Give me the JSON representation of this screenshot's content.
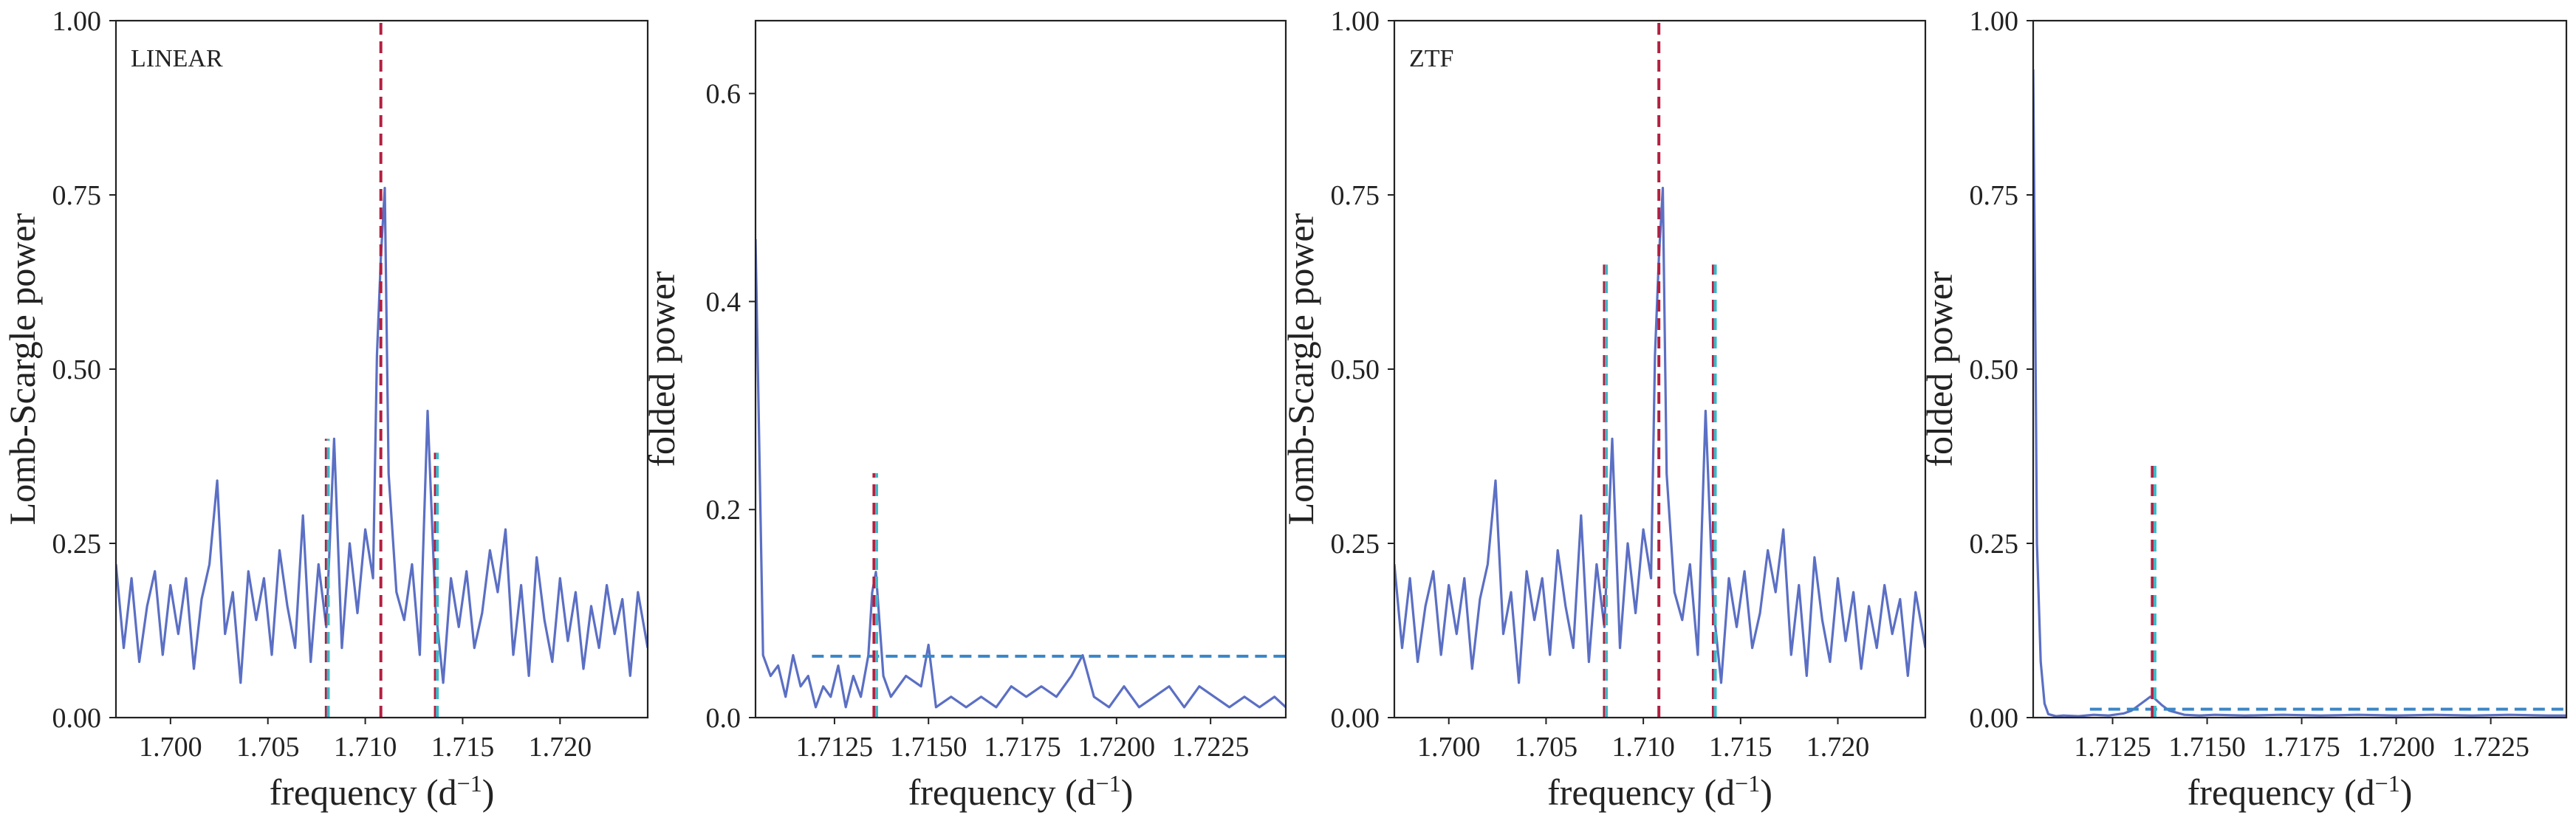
{
  "chart_data": [
    {
      "type": "line",
      "panel_label": "LINEAR",
      "xlabel": "frequency (d",
      "xlabel_sup": "−1",
      "xlabel_end": ")",
      "ylabel": "Lomb-Scargle power",
      "xlim": [
        1.6972,
        1.7245
      ],
      "ylim": [
        0,
        1
      ],
      "xticks": [
        1.7,
        1.705,
        1.71,
        1.715,
        1.72
      ],
      "xtick_labels": [
        "1.700",
        "1.705",
        "1.710",
        "1.715",
        "1.720"
      ],
      "yticks": [
        0,
        0.25,
        0.5,
        0.75,
        1.0
      ],
      "ytick_labels": [
        "0.00",
        "0.25",
        "0.50",
        "0.75",
        "1.00"
      ],
      "series": [
        {
          "color": "#5b6fc4",
          "x": [
            1.6972,
            1.6976,
            1.698,
            1.6984,
            1.6988,
            1.6992,
            1.6996,
            1.7,
            1.7004,
            1.7008,
            1.7012,
            1.7016,
            1.702,
            1.7024,
            1.7028,
            1.7032,
            1.7036,
            1.704,
            1.7044,
            1.7048,
            1.7052,
            1.7056,
            1.706,
            1.7064,
            1.7068,
            1.7072,
            1.7076,
            1.708,
            1.7084,
            1.7088,
            1.7092,
            1.7096,
            1.71,
            1.7104,
            1.7106,
            1.7108,
            1.711,
            1.7112,
            1.7116,
            1.712,
            1.7124,
            1.7128,
            1.7132,
            1.7136,
            1.714,
            1.7144,
            1.7148,
            1.7152,
            1.7156,
            1.716,
            1.7164,
            1.7168,
            1.7172,
            1.7176,
            1.718,
            1.7184,
            1.7188,
            1.7192,
            1.7196,
            1.72,
            1.7204,
            1.7208,
            1.7212,
            1.7216,
            1.722,
            1.7224,
            1.7228,
            1.7232,
            1.7236,
            1.724,
            1.7245
          ],
          "y": [
            0.22,
            0.1,
            0.2,
            0.08,
            0.16,
            0.21,
            0.09,
            0.19,
            0.12,
            0.2,
            0.07,
            0.17,
            0.22,
            0.34,
            0.12,
            0.18,
            0.05,
            0.21,
            0.14,
            0.2,
            0.09,
            0.24,
            0.16,
            0.1,
            0.29,
            0.08,
            0.22,
            0.13,
            0.4,
            0.1,
            0.25,
            0.15,
            0.27,
            0.2,
            0.52,
            0.66,
            0.76,
            0.35,
            0.18,
            0.14,
            0.22,
            0.09,
            0.44,
            0.16,
            0.05,
            0.2,
            0.13,
            0.21,
            0.1,
            0.15,
            0.24,
            0.18,
            0.27,
            0.09,
            0.19,
            0.06,
            0.23,
            0.14,
            0.08,
            0.2,
            0.11,
            0.18,
            0.07,
            0.16,
            0.1,
            0.19,
            0.12,
            0.17,
            0.06,
            0.18,
            0.1
          ]
        }
      ],
      "vlines": [
        {
          "x": 1.7108,
          "ymin": 0,
          "ymax": 1,
          "color": "#b22040",
          "style": "dash"
        },
        {
          "x": 1.708,
          "ymin": 0,
          "ymax": 0.4,
          "color": "#b22040",
          "style": "dash"
        },
        {
          "x": 1.7081,
          "ymin": 0,
          "ymax": 0.4,
          "color": "#40b8c8",
          "style": "dash"
        },
        {
          "x": 1.7136,
          "ymin": 0,
          "ymax": 0.38,
          "color": "#b22040",
          "style": "dash"
        },
        {
          "x": 1.7137,
          "ymin": 0,
          "ymax": 0.38,
          "color": "#40b8c8",
          "style": "dash"
        }
      ],
      "hlines": []
    },
    {
      "type": "line",
      "panel_label": "",
      "xlabel": "frequency (d",
      "xlabel_sup": "−1",
      "xlabel_end": ")",
      "ylabel": "folded power",
      "xlim": [
        1.7104,
        1.7245
      ],
      "ylim": [
        0,
        0.67
      ],
      "xticks": [
        1.7125,
        1.715,
        1.7175,
        1.72,
        1.7225
      ],
      "xtick_labels": [
        "1.7125",
        "1.7150",
        "1.7175",
        "1.7200",
        "1.7225"
      ],
      "yticks": [
        0,
        0.2,
        0.4,
        0.6
      ],
      "ytick_labels": [
        "0.0",
        "0.2",
        "0.4",
        "0.6"
      ],
      "series": [
        {
          "color": "#5b6fc4",
          "x": [
            1.7104,
            1.7106,
            1.7108,
            1.711,
            1.7112,
            1.7114,
            1.7116,
            1.7118,
            1.712,
            1.7122,
            1.7124,
            1.7126,
            1.7128,
            1.713,
            1.7132,
            1.7134,
            1.7135,
            1.7136,
            1.7138,
            1.714,
            1.7144,
            1.7148,
            1.715,
            1.7152,
            1.7156,
            1.716,
            1.7164,
            1.7168,
            1.7172,
            1.7176,
            1.718,
            1.7184,
            1.7188,
            1.7191,
            1.7194,
            1.7198,
            1.7202,
            1.7206,
            1.721,
            1.7214,
            1.7218,
            1.7222,
            1.7226,
            1.723,
            1.7234,
            1.7238,
            1.7242,
            1.7245
          ],
          "y": [
            0.46,
            0.06,
            0.04,
            0.05,
            0.02,
            0.06,
            0.03,
            0.04,
            0.01,
            0.03,
            0.02,
            0.05,
            0.01,
            0.04,
            0.02,
            0.06,
            0.12,
            0.14,
            0.04,
            0.02,
            0.04,
            0.03,
            0.07,
            0.01,
            0.02,
            0.01,
            0.02,
            0.01,
            0.03,
            0.02,
            0.03,
            0.02,
            0.04,
            0.06,
            0.02,
            0.01,
            0.03,
            0.01,
            0.02,
            0.03,
            0.01,
            0.03,
            0.02,
            0.01,
            0.02,
            0.01,
            0.02,
            0.01
          ]
        }
      ],
      "vlines": [
        {
          "x": 1.71355,
          "ymin": 0,
          "ymax": 0.235,
          "color": "#b22040",
          "style": "dash"
        },
        {
          "x": 1.71362,
          "ymin": 0,
          "ymax": 0.235,
          "color": "#40b8c8",
          "style": "dash"
        }
      ],
      "hlines": [
        {
          "y": 0.059,
          "xmin": 1.7119,
          "xmax": 1.7245,
          "color": "#3a86c8",
          "style": "dash"
        }
      ]
    },
    {
      "type": "line",
      "panel_label": "ZTF",
      "xlabel": "frequency (d",
      "xlabel_sup": "−1",
      "xlabel_end": ")",
      "ylabel": "Lomb-Scargle power",
      "xlim": [
        1.6972,
        1.7245
      ],
      "ylim": [
        0,
        1
      ],
      "xticks": [
        1.7,
        1.705,
        1.71,
        1.715,
        1.72
      ],
      "xtick_labels": [
        "1.700",
        "1.705",
        "1.710",
        "1.715",
        "1.720"
      ],
      "yticks": [
        0,
        0.25,
        0.5,
        0.75,
        1.0
      ],
      "ytick_labels": [
        "0.00",
        "0.25",
        "0.50",
        "0.75",
        "1.00"
      ],
      "series": [
        {
          "color": "#5b6fc4",
          "x": [
            1.6972,
            1.6976,
            1.698,
            1.6984,
            1.6988,
            1.6992,
            1.6996,
            1.7,
            1.7004,
            1.7008,
            1.7012,
            1.7016,
            1.702,
            1.7024,
            1.7028,
            1.7032,
            1.7036,
            1.704,
            1.7044,
            1.7048,
            1.7052,
            1.7056,
            1.706,
            1.7064,
            1.7068,
            1.7072,
            1.7076,
            1.708,
            1.7084,
            1.7088,
            1.7092,
            1.7096,
            1.71,
            1.7104,
            1.7106,
            1.7108,
            1.711,
            1.7112,
            1.7116,
            1.712,
            1.7124,
            1.7128,
            1.7132,
            1.7136,
            1.714,
            1.7144,
            1.7148,
            1.7152,
            1.7156,
            1.716,
            1.7164,
            1.7168,
            1.7172,
            1.7176,
            1.718,
            1.7184,
            1.7188,
            1.7192,
            1.7196,
            1.72,
            1.7204,
            1.7208,
            1.7212,
            1.7216,
            1.722,
            1.7224,
            1.7228,
            1.7232,
            1.7236,
            1.724,
            1.7245
          ],
          "y": [
            0.22,
            0.1,
            0.2,
            0.08,
            0.16,
            0.21,
            0.09,
            0.19,
            0.12,
            0.2,
            0.07,
            0.17,
            0.22,
            0.34,
            0.12,
            0.18,
            0.05,
            0.21,
            0.14,
            0.2,
            0.09,
            0.24,
            0.16,
            0.1,
            0.29,
            0.08,
            0.22,
            0.13,
            0.4,
            0.1,
            0.25,
            0.15,
            0.27,
            0.2,
            0.52,
            0.66,
            0.76,
            0.35,
            0.18,
            0.14,
            0.22,
            0.09,
            0.44,
            0.16,
            0.05,
            0.2,
            0.13,
            0.21,
            0.1,
            0.15,
            0.24,
            0.18,
            0.27,
            0.09,
            0.19,
            0.06,
            0.23,
            0.14,
            0.08,
            0.2,
            0.11,
            0.18,
            0.07,
            0.16,
            0.1,
            0.19,
            0.12,
            0.17,
            0.06,
            0.18,
            0.1
          ]
        }
      ],
      "vlines": [
        {
          "x": 1.7108,
          "ymin": 0,
          "ymax": 1,
          "color": "#b22040",
          "style": "dash"
        },
        {
          "x": 1.708,
          "ymin": 0,
          "ymax": 0.65,
          "color": "#b22040",
          "style": "dash"
        },
        {
          "x": 1.7081,
          "ymin": 0,
          "ymax": 0.65,
          "color": "#40b8c8",
          "style": "dash"
        },
        {
          "x": 1.7136,
          "ymin": 0,
          "ymax": 0.65,
          "color": "#b22040",
          "style": "dash"
        },
        {
          "x": 1.7137,
          "ymin": 0,
          "ymax": 0.65,
          "color": "#40b8c8",
          "style": "dash"
        }
      ],
      "hlines": []
    },
    {
      "type": "line",
      "panel_label": "",
      "xlabel": "frequency (d",
      "xlabel_sup": "−1",
      "xlabel_end": ")",
      "ylabel": "folded power",
      "xlim": [
        1.7104,
        1.7245
      ],
      "ylim": [
        0,
        1
      ],
      "xticks": [
        1.7125,
        1.715,
        1.7175,
        1.72,
        1.7225
      ],
      "xtick_labels": [
        "1.7125",
        "1.7150",
        "1.7175",
        "1.7200",
        "1.7225"
      ],
      "yticks": [
        0,
        0.25,
        0.5,
        0.75,
        1.0
      ],
      "ytick_labels": [
        "0.00",
        "0.25",
        "0.50",
        "0.75",
        "1.00"
      ],
      "series": [
        {
          "color": "#5b6fc4",
          "x": [
            1.7104,
            1.71045,
            1.7105,
            1.7106,
            1.7107,
            1.7108,
            1.711,
            1.7112,
            1.7116,
            1.712,
            1.7124,
            1.7128,
            1.713,
            1.7132,
            1.7134,
            1.7135,
            1.7136,
            1.7138,
            1.714,
            1.7144,
            1.7148,
            1.7152,
            1.716,
            1.717,
            1.718,
            1.719,
            1.72,
            1.721,
            1.722,
            1.723,
            1.724,
            1.7245
          ],
          "y": [
            0.93,
            0.6,
            0.25,
            0.08,
            0.02,
            0.005,
            0.002,
            0.003,
            0.002,
            0.004,
            0.003,
            0.006,
            0.01,
            0.018,
            0.026,
            0.03,
            0.028,
            0.018,
            0.01,
            0.004,
            0.003,
            0.004,
            0.003,
            0.004,
            0.003,
            0.004,
            0.003,
            0.004,
            0.003,
            0.004,
            0.003,
            0.003
          ]
        }
      ],
      "vlines": [
        {
          "x": 1.71355,
          "ymin": 0,
          "ymax": 0.37,
          "color": "#b22040",
          "style": "dash"
        },
        {
          "x": 1.71362,
          "ymin": 0,
          "ymax": 0.37,
          "color": "#40b8c8",
          "style": "dash"
        }
      ],
      "hlines": [
        {
          "y": 0.012,
          "xmin": 1.7119,
          "xmax": 1.7245,
          "color": "#3a86c8",
          "style": "dash"
        }
      ]
    }
  ]
}
